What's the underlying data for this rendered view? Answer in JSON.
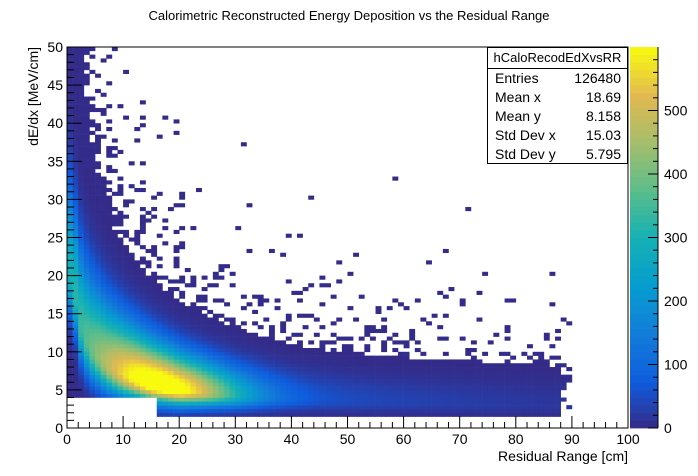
{
  "chart_data": {
    "type": "heatmap",
    "title": "Calorimetric Reconstructed Energy Deposition vs the Residual Range",
    "xlabel": "Residual Range [cm]",
    "ylabel": "dE/dx [MeV/cm]",
    "xlim": [
      0,
      100
    ],
    "ylim": [
      0,
      50
    ],
    "x_ticks": [
      0,
      10,
      20,
      30,
      40,
      50,
      60,
      70,
      80,
      90,
      100
    ],
    "y_ticks": [
      0,
      5,
      10,
      15,
      20,
      25,
      30,
      35,
      40,
      45,
      50
    ],
    "z_range": [
      0,
      600
    ],
    "colorbar_ticks": [
      0,
      100,
      200,
      300,
      400,
      500
    ],
    "colorbar_palette": "kBird",
    "band_description_ridge": [
      {
        "x": 1,
        "y": 20
      },
      {
        "x": 2,
        "y": 14
      },
      {
        "x": 4,
        "y": 10.5
      },
      {
        "x": 7,
        "y": 8.3
      },
      {
        "x": 10,
        "y": 7.1
      },
      {
        "x": 15,
        "y": 5.8
      },
      {
        "x": 20,
        "y": 5.0
      },
      {
        "x": 30,
        "y": 4.3
      },
      {
        "x": 40,
        "y": 3.9
      },
      {
        "x": 50,
        "y": 3.6
      },
      {
        "x": 60,
        "y": 3.4
      },
      {
        "x": 70,
        "y": 3.25
      },
      {
        "x": 80,
        "y": 3.1
      },
      {
        "x": 88,
        "y": 3.0
      }
    ],
    "stats_box": {
      "name": "hCaloRecodEdXvsRR",
      "rows": [
        {
          "key": "Entries",
          "value": "126480"
        },
        {
          "key": "Mean x",
          "value": "18.69"
        },
        {
          "key": "Mean y",
          "value": "8.158"
        },
        {
          "key": "Std Dev x",
          "value": "15.03"
        },
        {
          "key": "Std Dev y",
          "value": "5.795"
        }
      ]
    }
  }
}
